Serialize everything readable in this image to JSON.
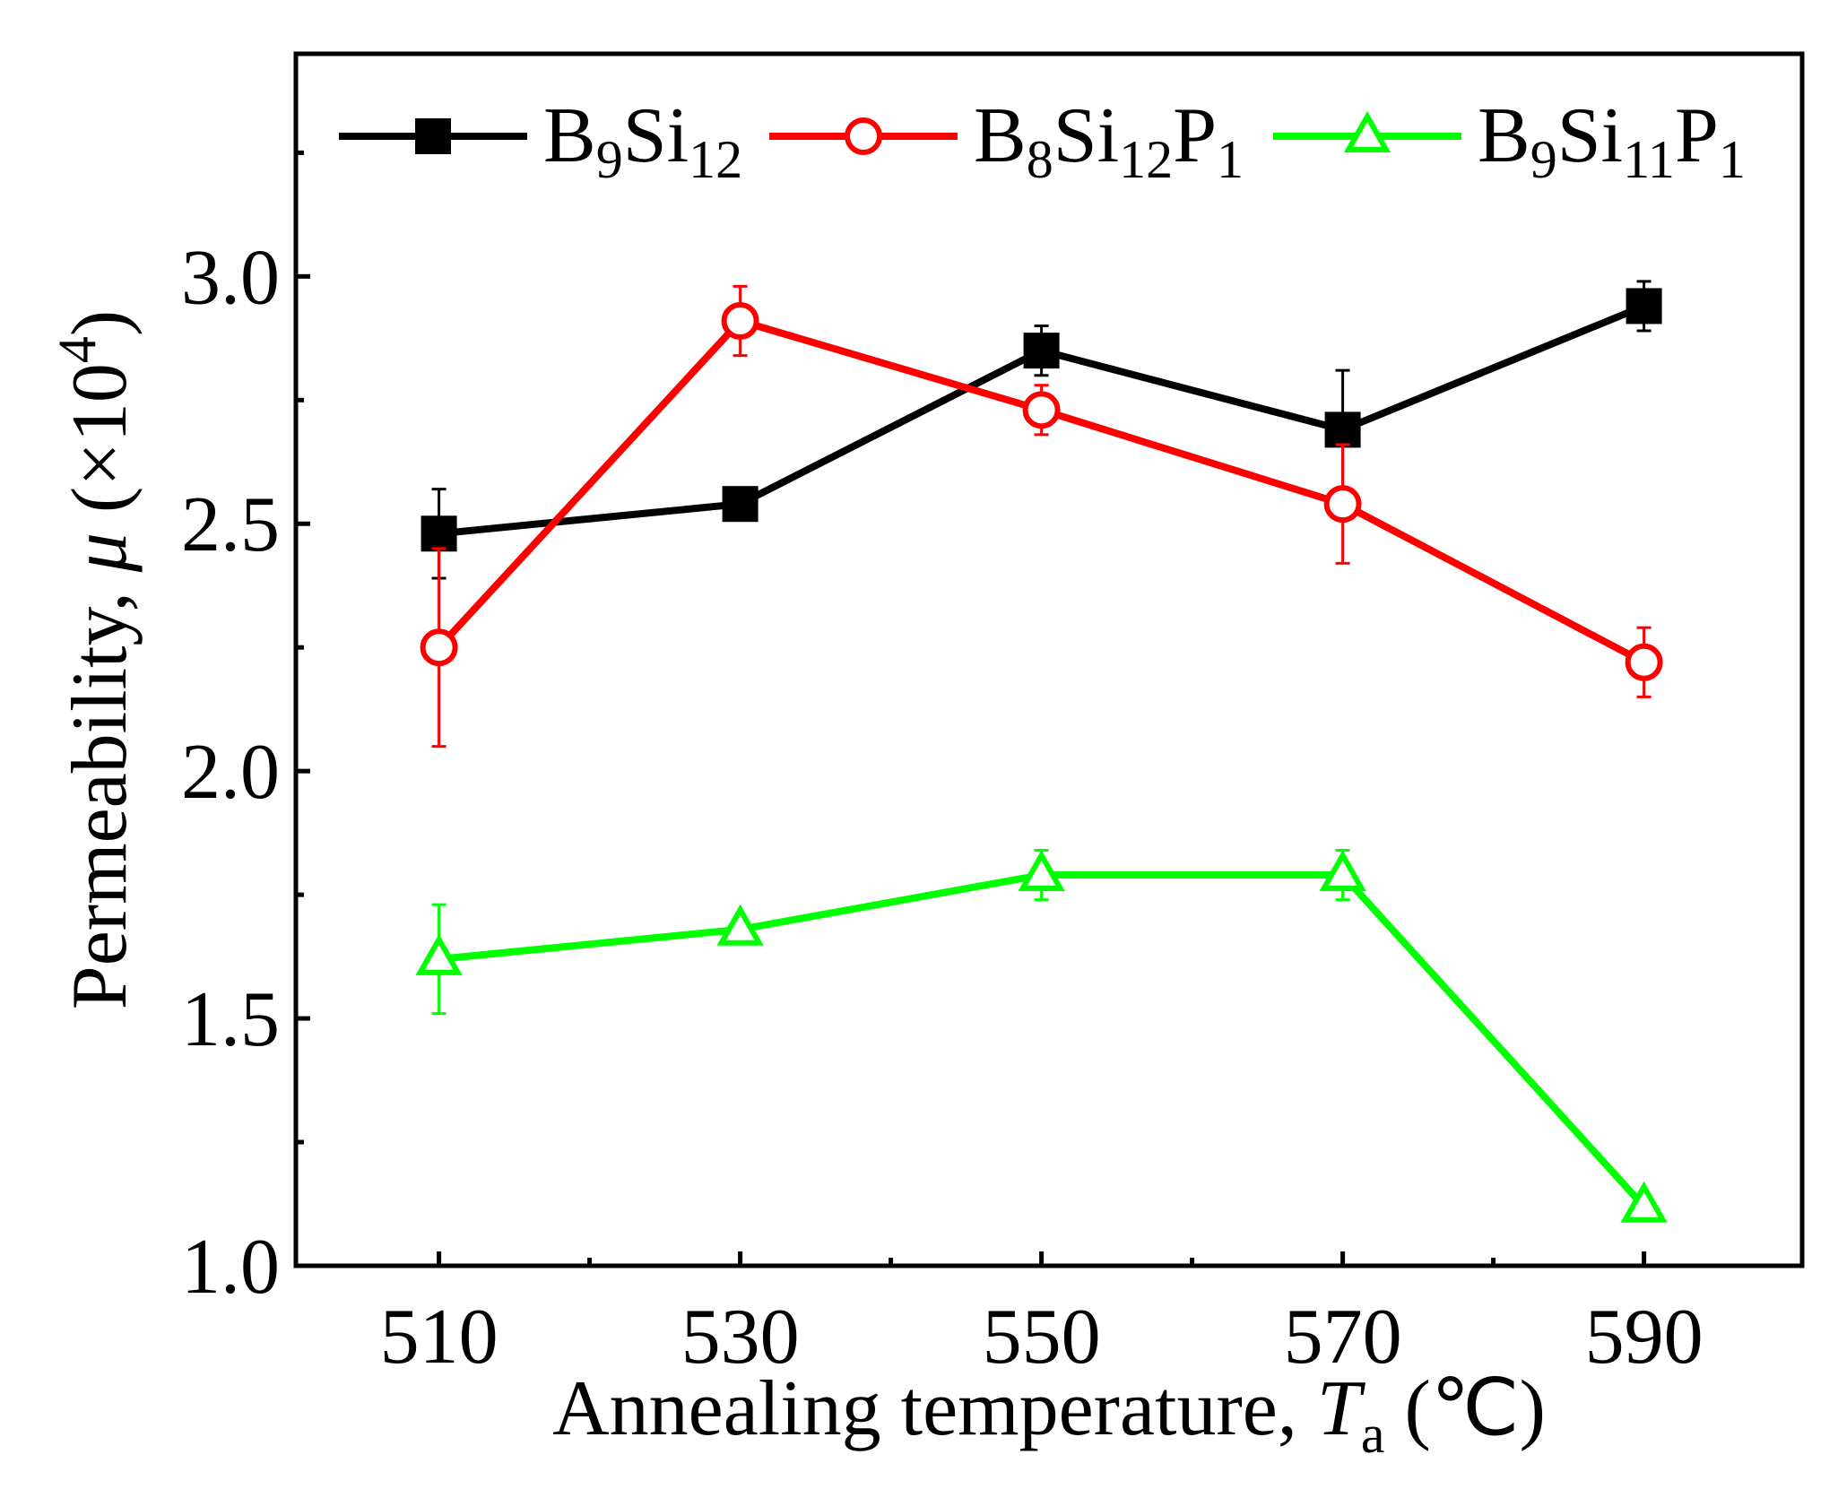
{
  "chart_data": {
    "type": "line",
    "xlabel": {
      "prefix": "Annealing temperature, ",
      "var": "T",
      "sub": "a",
      "unit": " (℃)"
    },
    "ylabel": {
      "prefix": "Permeability, ",
      "var": "μ",
      "unit_open": " (×10",
      "sup": "4",
      "unit_close": ")"
    },
    "x": [
      510,
      530,
      550,
      570,
      590
    ],
    "x_tick_labels": [
      "510",
      "530",
      "550",
      "570",
      "590"
    ],
    "y_tick_labels": [
      "1.0",
      "1.5",
      "2.0",
      "2.5",
      "3.0"
    ],
    "y_ticks": [
      1.0,
      1.5,
      2.0,
      2.5,
      3.0
    ],
    "xlim": [
      500.5,
      600.5
    ],
    "ylim": [
      1.0,
      3.45
    ],
    "x_minor_ticks": [
      520,
      540,
      560,
      580
    ],
    "y_minor_ticks": [
      1.25,
      1.75,
      2.25,
      2.75,
      3.25
    ],
    "grid": false,
    "legend_position": "top",
    "series": [
      {
        "name": "B9Si12",
        "label_parts": [
          [
            "B",
            ""
          ],
          [
            "9",
            "sub"
          ],
          [
            "Si",
            ""
          ],
          [
            "12",
            "sub"
          ]
        ],
        "color": "#000000",
        "marker": "filled-square",
        "values": [
          2.48,
          2.54,
          2.85,
          2.69,
          2.94
        ],
        "errors": [
          0.09,
          0.0,
          0.05,
          0.12,
          0.05
        ]
      },
      {
        "name": "B8Si12P1",
        "label_parts": [
          [
            "B",
            ""
          ],
          [
            "8",
            "sub"
          ],
          [
            "Si",
            ""
          ],
          [
            "12",
            "sub"
          ],
          [
            "P",
            ""
          ],
          [
            "1",
            "sub"
          ]
        ],
        "color": "#ff0000",
        "marker": "open-circle",
        "values": [
          2.25,
          2.91,
          2.73,
          2.54,
          2.22
        ],
        "errors": [
          0.2,
          0.07,
          0.05,
          0.12,
          0.07
        ]
      },
      {
        "name": "B9Si11P1",
        "label_parts": [
          [
            "B",
            ""
          ],
          [
            "9",
            "sub"
          ],
          [
            "Si",
            ""
          ],
          [
            "11",
            "sub"
          ],
          [
            "P",
            ""
          ],
          [
            "1",
            "sub"
          ]
        ],
        "color": "#00ff00",
        "marker": "open-triangle",
        "values": [
          1.62,
          1.68,
          1.79,
          1.79,
          1.12
        ],
        "errors": [
          0.11,
          0.0,
          0.05,
          0.05,
          0.0
        ]
      }
    ]
  }
}
